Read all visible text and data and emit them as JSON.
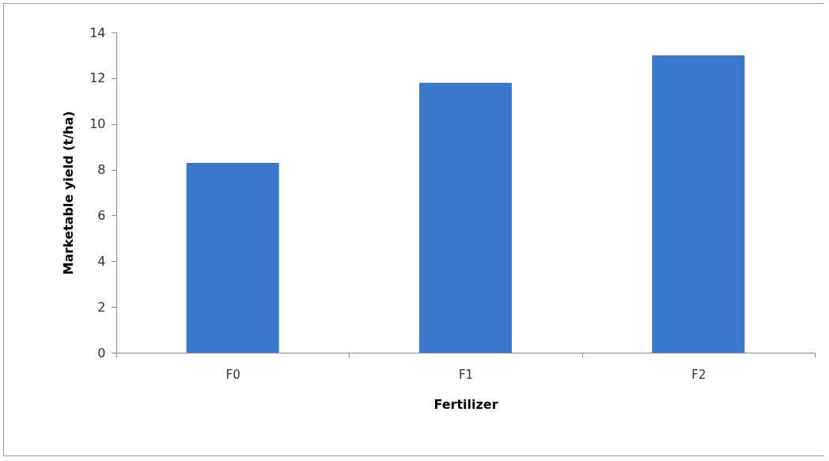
{
  "chart_data": {
    "type": "bar",
    "xlabel": "Fertilizer",
    "ylabel": "Marketable yield (t/ha)",
    "categories": [
      "F0",
      "F1",
      "F2"
    ],
    "values": [
      8.3,
      11.8,
      13.0
    ],
    "color": "#3a78c9",
    "ylim": [
      0,
      14
    ],
    "yticks": [
      0,
      2,
      4,
      6,
      8,
      10,
      12,
      14
    ],
    "grid": false
  }
}
